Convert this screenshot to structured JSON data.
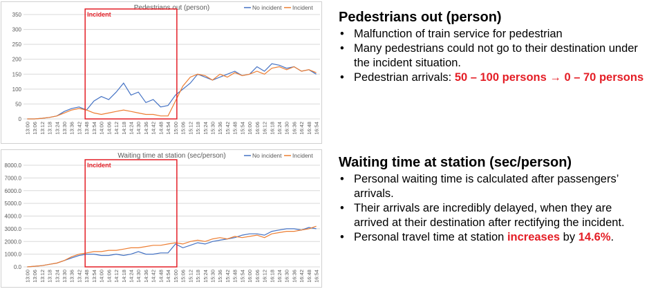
{
  "chart_data": [
    {
      "type": "line",
      "title": "Pedestrians out (person)",
      "legend_position": "top-right",
      "ylim": [
        0,
        350
      ],
      "yticks": [
        0,
        50,
        100,
        150,
        200,
        250,
        300,
        350
      ],
      "ytick_labels": [
        "0",
        "50",
        "100",
        "150",
        "200",
        "250",
        "300",
        "350"
      ],
      "x": [
        "13:00",
        "13:06",
        "13:12",
        "13:18",
        "13:24",
        "13:30",
        "13:36",
        "13:42",
        "13:48",
        "13:54",
        "14:00",
        "14:06",
        "14:12",
        "14:18",
        "14:24",
        "14:30",
        "14:36",
        "14:42",
        "14:48",
        "14:54",
        "15:00",
        "15:06",
        "15:12",
        "15:18",
        "15:24",
        "15:30",
        "15:36",
        "15:42",
        "15:48",
        "15:54",
        "16:00",
        "16:06",
        "16:12",
        "16:18",
        "16:24",
        "16:30",
        "16:36",
        "16:42",
        "16:48",
        "16:54"
      ],
      "annotation": {
        "label": "Incident",
        "x_start": "13:48",
        "x_end": "15:00"
      },
      "series": [
        {
          "name": "No incident",
          "color": "#4472c4",
          "values": [
            0,
            0,
            2,
            5,
            10,
            25,
            35,
            40,
            30,
            60,
            75,
            65,
            90,
            120,
            80,
            90,
            55,
            65,
            40,
            45,
            80,
            100,
            120,
            150,
            140,
            130,
            140,
            150,
            160,
            145,
            150,
            175,
            160,
            185,
            180,
            170,
            175,
            160,
            165,
            150
          ]
        },
        {
          "name": "Incident",
          "color": "#ed7d31",
          "values": [
            0,
            0,
            2,
            5,
            10,
            20,
            30,
            35,
            30,
            20,
            15,
            20,
            25,
            30,
            25,
            20,
            15,
            15,
            10,
            10,
            60,
            110,
            140,
            150,
            145,
            130,
            150,
            140,
            155,
            145,
            150,
            160,
            150,
            170,
            175,
            165,
            175,
            160,
            165,
            155
          ]
        }
      ]
    },
    {
      "type": "line",
      "title": "Waiting time at station (sec/person)",
      "legend_position": "top-right",
      "ylim": [
        0,
        8000
      ],
      "yticks": [
        0,
        1000,
        2000,
        3000,
        4000,
        5000,
        6000,
        7000,
        8000
      ],
      "ytick_labels": [
        "0.0",
        "1000.0",
        "2000.0",
        "3000.0",
        "4000.0",
        "5000.0",
        "6000.0",
        "7000.0",
        "8000.0"
      ],
      "x": [
        "13:00",
        "13:06",
        "13:12",
        "13:18",
        "13:24",
        "13:30",
        "13:36",
        "13:42",
        "13:48",
        "13:54",
        "14:00",
        "14:06",
        "14:12",
        "14:18",
        "14:24",
        "14:30",
        "14:36",
        "14:42",
        "14:48",
        "14:54",
        "15:00",
        "15:06",
        "15:12",
        "15:18",
        "15:24",
        "15:30",
        "15:36",
        "15:42",
        "15:48",
        "15:54",
        "16:00",
        "16:06",
        "16:12",
        "16:18",
        "16:24",
        "16:30",
        "16:36",
        "16:42",
        "16:48",
        "16:54"
      ],
      "annotation": {
        "label": "Incident",
        "x_start": "13:48",
        "x_end": "15:00"
      },
      "series": [
        {
          "name": "No incident",
          "color": "#4472c4",
          "values": [
            0,
            50,
            100,
            200,
            300,
            500,
            700,
            900,
            1000,
            1000,
            900,
            900,
            1000,
            900,
            1000,
            1200,
            1000,
            1000,
            1100,
            1100,
            1800,
            1500,
            1700,
            1900,
            1800,
            2000,
            2100,
            2200,
            2300,
            2500,
            2600,
            2600,
            2500,
            2800,
            2900,
            3000,
            3000,
            2900,
            3100,
            3000
          ]
        },
        {
          "name": "Incident",
          "color": "#ed7d31",
          "values": [
            0,
            50,
            100,
            200,
            300,
            500,
            800,
            1000,
            1100,
            1200,
            1200,
            1300,
            1300,
            1400,
            1500,
            1500,
            1600,
            1700,
            1700,
            1800,
            1900,
            1800,
            2000,
            2100,
            2000,
            2200,
            2300,
            2200,
            2400,
            2300,
            2400,
            2500,
            2300,
            2600,
            2700,
            2800,
            2800,
            2900,
            3000,
            3200
          ]
        }
      ]
    }
  ],
  "panel1": {
    "heading": "Pedestrians out (person)",
    "bullet1": "Malfunction of train service for pedestrian",
    "bullet2": "Many pedestrians could not go to their destination under the incident situation.",
    "bullet3_prefix": "Pedestrian arrivals: ",
    "bullet3_highlight": "50 – 100 persons → 0 – 70 persons"
  },
  "panel2": {
    "heading": "Waiting time at station (sec/person)",
    "bullet1": "Personal waiting time is calculated after passengers’ arrivals.",
    "bullet2": "Their arrivals are incredibly delayed, when they are arrived at their destination after rectifying the incident.",
    "bullet3_prefix": "Personal travel time at station ",
    "bullet3_highlight1": "increases",
    "bullet3_mid": " by ",
    "bullet3_highlight2": "14.6%",
    "bullet3_suffix": "."
  }
}
